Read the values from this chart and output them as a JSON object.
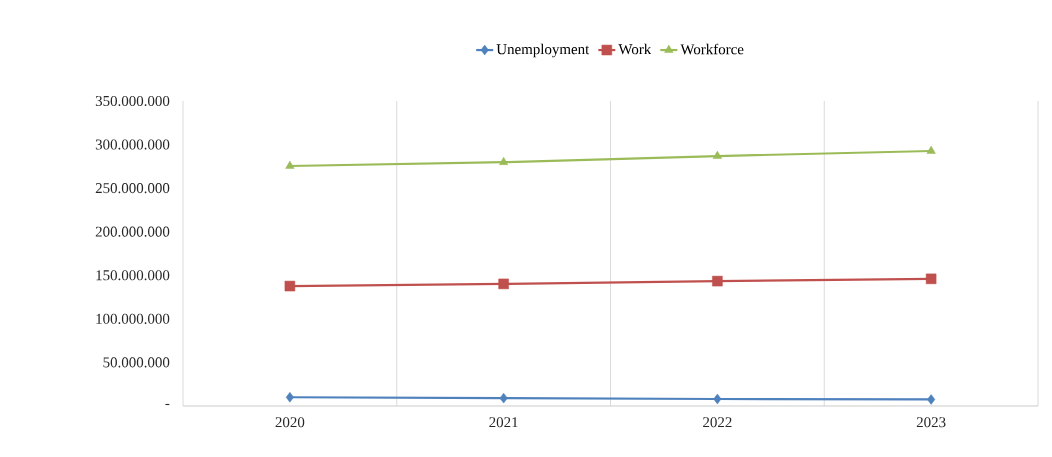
{
  "chart_data": {
    "type": "line",
    "categories": [
      "2020",
      "2021",
      "2022",
      "2023"
    ],
    "series": [
      {
        "name": "Unemployment",
        "color": "#4f81bd",
        "marker": "diamond",
        "values": [
          10000000,
          9000000,
          8000000,
          7500000
        ]
      },
      {
        "name": "Work",
        "color": "#c0504d",
        "marker": "square",
        "values": [
          137600000,
          140100000,
          143300000,
          145900000
        ]
      },
      {
        "name": "Workforce",
        "color": "#9bbb59",
        "marker": "triangle",
        "values": [
          275400000,
          279800000,
          286800000,
          292600000
        ]
      }
    ],
    "ylim": [
      0,
      350000000
    ],
    "yticks": [
      {
        "value": 0,
        "label": "-"
      },
      {
        "value": 50000000,
        "label": "50.000.000"
      },
      {
        "value": 100000000,
        "label": "100.000.000"
      },
      {
        "value": 150000000,
        "label": "150.000.000"
      },
      {
        "value": 200000000,
        "label": "200.000.000"
      },
      {
        "value": 250000000,
        "label": "250.000.000"
      },
      {
        "value": 300000000,
        "label": "300.000.000"
      },
      {
        "value": 350000000,
        "label": "350.000.000"
      }
    ],
    "grid": "x",
    "legend": "top",
    "line_style": "solid"
  }
}
